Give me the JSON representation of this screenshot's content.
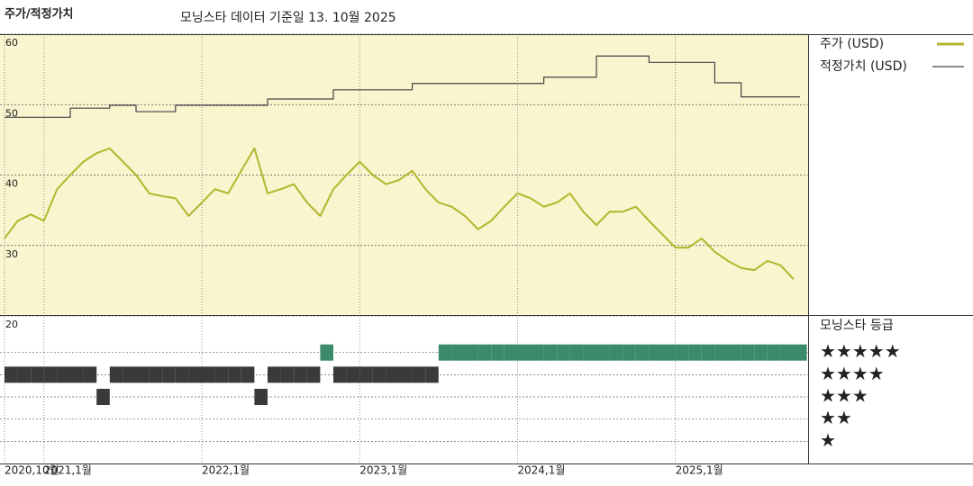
{
  "chart_data": [
    {
      "type": "line",
      "title": "주가/적정가치",
      "subtitle": "모닝스타 데이터 기준일 13. 10월 2025",
      "x": [
        "2020-10",
        "2020-11",
        "2020-12",
        "2021-01",
        "2021-02",
        "2021-03",
        "2021-04",
        "2021-05",
        "2021-06",
        "2021-07",
        "2021-08",
        "2021-09",
        "2021-10",
        "2021-11",
        "2021-12",
        "2022-01",
        "2022-02",
        "2022-03",
        "2022-04",
        "2022-05",
        "2022-06",
        "2022-07",
        "2022-08",
        "2022-09",
        "2022-10",
        "2022-11",
        "2022-12",
        "2023-01",
        "2023-02",
        "2023-03",
        "2023-04",
        "2023-05",
        "2023-06",
        "2023-07",
        "2023-08",
        "2023-09",
        "2023-10",
        "2023-11",
        "2023-12",
        "2024-01",
        "2024-02",
        "2024-03",
        "2024-04",
        "2024-05",
        "2024-06",
        "2024-07",
        "2024-08",
        "2024-09",
        "2024-10",
        "2024-11",
        "2024-12",
        "2025-01",
        "2025-02",
        "2025-03",
        "2025-04",
        "2025-05",
        "2025-06",
        "2025-07",
        "2025-08",
        "2025-09",
        "2025-10"
      ],
      "series": [
        {
          "name": "주가 (USD)",
          "color": "#b3b62c",
          "step": false,
          "values": [
            31.0,
            33.5,
            34.4,
            33.5,
            38.0,
            40.0,
            41.9,
            43.1,
            43.8,
            41.9,
            40.0,
            37.4,
            37.0,
            36.7,
            34.2,
            36.1,
            38.0,
            37.4,
            40.6,
            43.8,
            37.4,
            38.0,
            38.7,
            36.1,
            34.2,
            38.0,
            40.0,
            41.9,
            40.0,
            38.7,
            39.3,
            40.6,
            38.0,
            36.1,
            35.5,
            34.2,
            32.3,
            33.5,
            35.5,
            37.4,
            36.7,
            35.5,
            36.1,
            37.4,
            34.8,
            32.9,
            34.8,
            34.8,
            35.5,
            33.5,
            31.6,
            29.7,
            29.7,
            31.0,
            29.1,
            27.8,
            26.8,
            26.5,
            27.8,
            27.2,
            25.2
          ]
        },
        {
          "name": "적정가치 (USD)",
          "color": "#444444",
          "step": true,
          "values": [
            48.2,
            48.2,
            48.2,
            48.2,
            48.2,
            49.5,
            49.5,
            49.5,
            49.9,
            49.9,
            49.0,
            49.0,
            49.0,
            49.9,
            49.9,
            49.9,
            49.9,
            49.9,
            49.9,
            49.9,
            50.8,
            50.8,
            50.8,
            50.8,
            50.8,
            52.1,
            52.1,
            52.1,
            52.1,
            52.1,
            52.1,
            53.0,
            53.0,
            53.0,
            53.0,
            53.0,
            53.0,
            53.0,
            53.0,
            53.0,
            53.0,
            53.9,
            53.9,
            53.9,
            53.9,
            56.9,
            56.9,
            56.9,
            56.9,
            56.0,
            56.0,
            56.0,
            56.0,
            56.0,
            53.1,
            53.1,
            51.1,
            51.1,
            51.1,
            51.1,
            51.1
          ]
        }
      ],
      "ylim": [
        20,
        60
      ],
      "yticks": [
        20,
        30,
        40,
        50,
        60
      ],
      "xticks": [
        {
          "value": "2020-10",
          "label": "2020,10월"
        },
        {
          "value": "2021-01",
          "label": "2021,1월"
        },
        {
          "value": "2022-01",
          "label": "2022,1월"
        },
        {
          "value": "2023-01",
          "label": "2023,1월"
        },
        {
          "value": "2024-01",
          "label": "2024,1월"
        },
        {
          "value": "2025-01",
          "label": "2025,1월"
        }
      ],
      "grid": true,
      "background": "#f8f5cf"
    },
    {
      "type": "rating",
      "title": "모닝스타 등급",
      "x": [
        "2020-10",
        "2020-11",
        "2020-12",
        "2021-01",
        "2021-02",
        "2021-03",
        "2021-04",
        "2021-05",
        "2021-06",
        "2021-07",
        "2021-08",
        "2021-09",
        "2021-10",
        "2021-11",
        "2021-12",
        "2022-01",
        "2022-02",
        "2022-03",
        "2022-04",
        "2022-05",
        "2022-06",
        "2022-07",
        "2022-08",
        "2022-09",
        "2022-10",
        "2022-11",
        "2022-12",
        "2023-01",
        "2023-02",
        "2023-03",
        "2023-04",
        "2023-05",
        "2023-06",
        "2023-07",
        "2023-08",
        "2023-09",
        "2023-10",
        "2023-11",
        "2023-12",
        "2024-01",
        "2024-02",
        "2024-03",
        "2024-04",
        "2024-05",
        "2024-06",
        "2024-07",
        "2024-08",
        "2024-09",
        "2024-10",
        "2024-11",
        "2024-12",
        "2025-01",
        "2025-02",
        "2025-03",
        "2025-04",
        "2025-05",
        "2025-06",
        "2025-07",
        "2025-08",
        "2025-09",
        "2025-10"
      ],
      "values": [
        4,
        4,
        4,
        4,
        4,
        4,
        4,
        3,
        4,
        4,
        4,
        4,
        4,
        4,
        4,
        4,
        4,
        4,
        4,
        3,
        4,
        4,
        4,
        4,
        5,
        4,
        4,
        4,
        4,
        4,
        4,
        4,
        4,
        5,
        5,
        5,
        5,
        5,
        5,
        5,
        5,
        5,
        5,
        5,
        5,
        5,
        5,
        5,
        5,
        5,
        5,
        5,
        5,
        5,
        5,
        5,
        5,
        5,
        5,
        5,
        5
      ],
      "ylim": [
        0,
        6.65
      ],
      "yticks": [
        {
          "value": 5,
          "label": "★★★★★"
        },
        {
          "value": 4,
          "label": "★★★★"
        },
        {
          "value": 3,
          "label": "★★★"
        },
        {
          "value": 2,
          "label": "★★"
        },
        {
          "value": 1,
          "label": "★"
        }
      ],
      "level_colors": {
        "5": "#3b8a6b",
        "4": "#3a3a3a",
        "3": "#3a3a3a",
        "2": "#3a3a3a",
        "1": "#3a3a3a"
      },
      "grid": true
    }
  ]
}
